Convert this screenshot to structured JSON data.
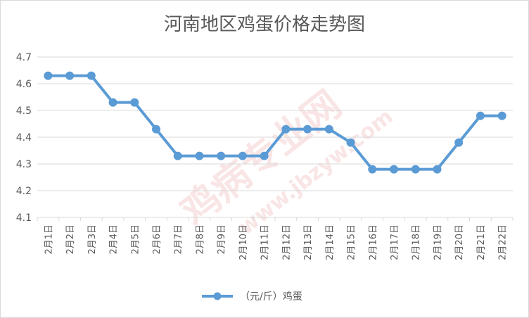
{
  "chart_data": {
    "type": "line",
    "title": "河南地区鸡蛋价格走势图",
    "xlabel": "",
    "ylabel": "",
    "categories": [
      "2月1日",
      "2月2日",
      "2月3日",
      "2月4日",
      "2月5日",
      "2月6日",
      "2月7日",
      "2月8日",
      "2月9日",
      "2月10日",
      "2月11日",
      "2月12日",
      "2月13日",
      "2月14日",
      "2月15日",
      "2月16日",
      "2月17日",
      "2月18日",
      "2月19日",
      "2月20日",
      "2月21日",
      "2月22日"
    ],
    "series": [
      {
        "name": "（元/斤）鸡蛋",
        "values": [
          4.63,
          4.63,
          4.63,
          4.53,
          4.53,
          4.43,
          4.33,
          4.33,
          4.33,
          4.33,
          4.33,
          4.43,
          4.43,
          4.43,
          4.38,
          4.28,
          4.28,
          4.28,
          4.28,
          4.38,
          4.48,
          4.48
        ],
        "color": "#5b9bd5"
      }
    ],
    "ylim": [
      4.1,
      4.7
    ],
    "yticks": [
      "4.1",
      "4.2",
      "4.3",
      "4.4",
      "4.5",
      "4.6",
      "4.7"
    ],
    "grid": true,
    "legend_position": "bottom",
    "gridline_color": "#d9d9d9",
    "watermark": {
      "main": "鸡病专业网",
      "url": "www.jbzyw.com"
    }
  }
}
